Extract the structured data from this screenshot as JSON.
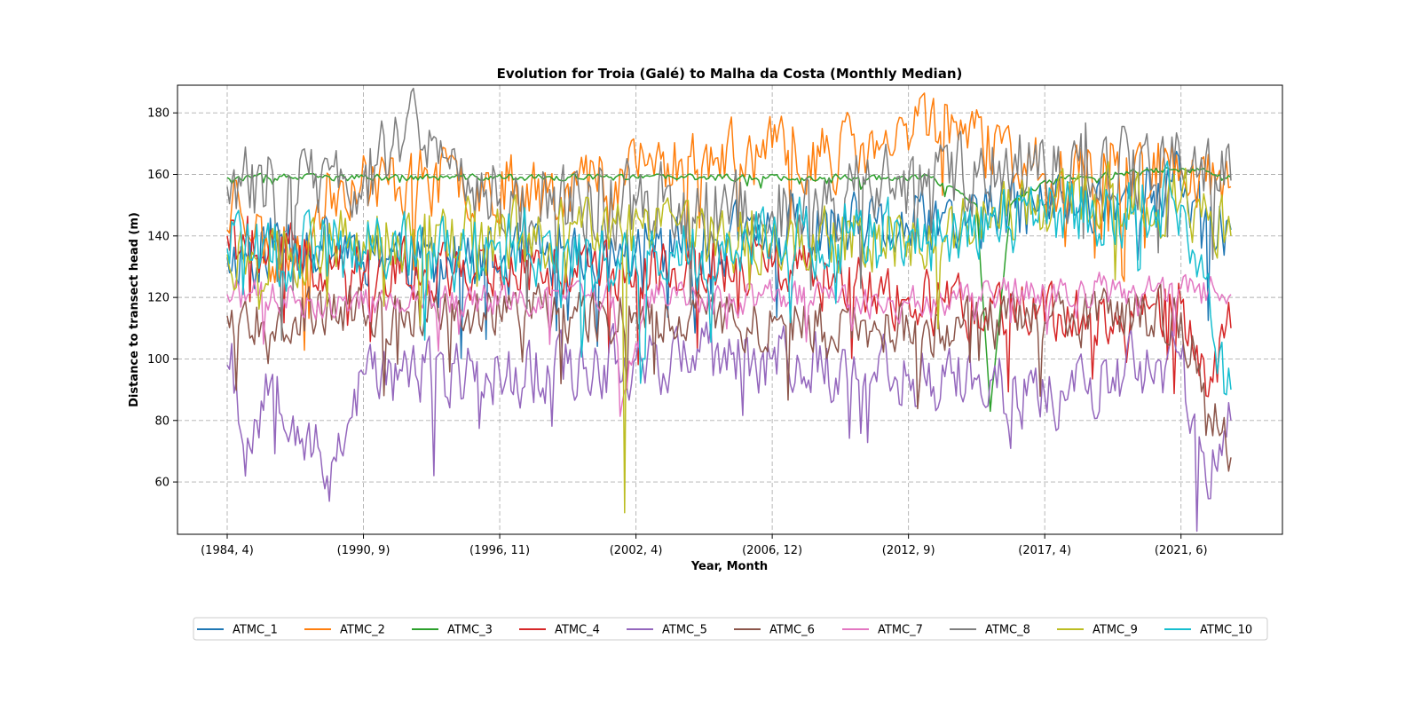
{
  "chart_data": {
    "type": "line",
    "title": "Evolution for Troia (Galé) to Malha da Costa (Monthly Median)",
    "xlabel": "Year, Month",
    "ylabel": "Distance to transect head (m)",
    "x_tick_labels": [
      "(1984, 4)",
      "(1990, 9)",
      "(1996, 11)",
      "(2002, 4)",
      "(2006, 12)",
      "(2012, 9)",
      "(2017, 4)",
      "(2021, 6)"
    ],
    "x_tick_index": [
      0,
      60,
      120,
      180,
      240,
      300,
      360,
      420
    ],
    "n_points": 443,
    "y_ticks": [
      60,
      80,
      100,
      120,
      140,
      160,
      180
    ],
    "ylim": [
      43,
      189
    ],
    "grid": true,
    "legend_position": "bottom-center",
    "series": [
      {
        "name": "ATMC_1",
        "color": "#1f77b4",
        "base": 136,
        "amp": 10,
        "seed": 11,
        "anchors": [
          [
            0,
            133
          ],
          [
            30,
            140
          ],
          [
            110,
            130
          ],
          [
            180,
            135
          ],
          [
            240,
            140
          ],
          [
            300,
            142
          ],
          [
            360,
            150
          ],
          [
            420,
            155
          ],
          [
            442,
            142
          ]
        ]
      },
      {
        "name": "ATMC_2",
        "color": "#ff7f0e",
        "base": 158,
        "amp": 10,
        "seed": 23,
        "anchors": [
          [
            0,
            142
          ],
          [
            4,
            158
          ],
          [
            20,
            130
          ],
          [
            50,
            158
          ],
          [
            150,
            157
          ],
          [
            200,
            165
          ],
          [
            300,
            168
          ],
          [
            303,
            182
          ],
          [
            360,
            160
          ],
          [
            420,
            162
          ],
          [
            442,
            156
          ]
        ]
      },
      {
        "name": "ATMC_3",
        "color": "#2ca02c",
        "base": 159,
        "amp": 1,
        "seed": 37,
        "anchors": [
          [
            0,
            159
          ],
          [
            150,
            159
          ],
          [
            310,
            159
          ],
          [
            330,
            150
          ],
          [
            336,
            83
          ],
          [
            345,
            150
          ],
          [
            360,
            158
          ],
          [
            420,
            162
          ],
          [
            442,
            159
          ]
        ]
      },
      {
        "name": "ATMC_4",
        "color": "#d62728",
        "base": 130,
        "amp": 9,
        "seed": 41,
        "anchors": [
          [
            0,
            140
          ],
          [
            60,
            128
          ],
          [
            120,
            130
          ],
          [
            180,
            130
          ],
          [
            240,
            130
          ],
          [
            300,
            120
          ],
          [
            360,
            112
          ],
          [
            420,
            118
          ],
          [
            431,
            88
          ],
          [
            442,
            110
          ]
        ]
      },
      {
        "name": "ATMC_5",
        "color": "#9467bd",
        "base": 96,
        "amp": 10,
        "seed": 53,
        "anchors": [
          [
            0,
            98
          ],
          [
            2,
            105
          ],
          [
            7,
            72
          ],
          [
            20,
            95
          ],
          [
            44,
            62
          ],
          [
            60,
            95
          ],
          [
            120,
            95
          ],
          [
            180,
            100
          ],
          [
            240,
            100
          ],
          [
            300,
            95
          ],
          [
            360,
            88
          ],
          [
            420,
            100
          ],
          [
            431,
            60
          ],
          [
            442,
            80
          ]
        ]
      },
      {
        "name": "ATMC_6",
        "color": "#8c564b",
        "base": 113,
        "amp": 8,
        "seed": 67,
        "anchors": [
          [
            0,
            114
          ],
          [
            60,
            115
          ],
          [
            120,
            115
          ],
          [
            180,
            115
          ],
          [
            240,
            112
          ],
          [
            300,
            110
          ],
          [
            360,
            112
          ],
          [
            420,
            115
          ],
          [
            442,
            68
          ]
        ]
      },
      {
        "name": "ATMC_7",
        "color": "#e377c2",
        "base": 120,
        "amp": 5,
        "seed": 71,
        "anchors": [
          [
            0,
            121
          ],
          [
            60,
            118
          ],
          [
            120,
            120
          ],
          [
            170,
            120
          ],
          [
            174,
            86
          ],
          [
            185,
            120
          ],
          [
            240,
            120
          ],
          [
            300,
            118
          ],
          [
            360,
            122
          ],
          [
            420,
            123
          ],
          [
            442,
            121
          ]
        ]
      },
      {
        "name": "ATMC_8",
        "color": "#7f7f7f",
        "base": 153,
        "amp": 12,
        "seed": 83,
        "anchors": [
          [
            0,
            156
          ],
          [
            60,
            158
          ],
          [
            79,
            178
          ],
          [
            120,
            152
          ],
          [
            180,
            150
          ],
          [
            240,
            148
          ],
          [
            300,
            158
          ],
          [
            360,
            162
          ],
          [
            420,
            162
          ],
          [
            442,
            158
          ]
        ]
      },
      {
        "name": "ATMC_9",
        "color": "#bcbd22",
        "base": 140,
        "amp": 10,
        "seed": 97,
        "anchors": [
          [
            0,
            134
          ],
          [
            60,
            138
          ],
          [
            120,
            140
          ],
          [
            174,
            140
          ],
          [
            175,
            50
          ],
          [
            176,
            140
          ],
          [
            240,
            138
          ],
          [
            300,
            140
          ],
          [
            360,
            150
          ],
          [
            420,
            152
          ],
          [
            442,
            140
          ]
        ]
      },
      {
        "name": "ATMC_10",
        "color": "#17becf",
        "base": 136,
        "amp": 11,
        "seed": 101,
        "anchors": [
          [
            0,
            136
          ],
          [
            60,
            135
          ],
          [
            120,
            138
          ],
          [
            180,
            130
          ],
          [
            240,
            140
          ],
          [
            300,
            138
          ],
          [
            360,
            148
          ],
          [
            420,
            150
          ],
          [
            442,
            90
          ]
        ]
      }
    ]
  }
}
